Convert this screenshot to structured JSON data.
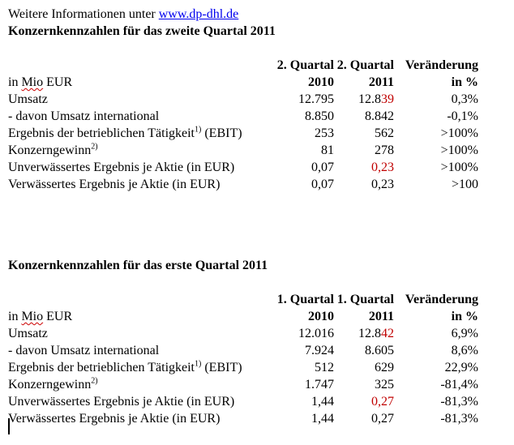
{
  "intro": {
    "prefix": "Weitere Informationen unter ",
    "link": "www.dp-dhl.de"
  },
  "colors": {
    "link": "#0000ee",
    "changed_value": "#c00000",
    "spellcheck_squiggle": "#cc0000"
  },
  "tables": [
    {
      "title": "Konzernkennzahlen für das zweite Quartal 2011",
      "quarter_headers": [
        "2. Quartal",
        "2. Quartal",
        "Veränderung"
      ],
      "unit_row": {
        "pre": "in ",
        "wavy": "Mio",
        "post": " EUR",
        "cols": [
          "2010",
          "2011",
          "in %"
        ]
      },
      "rows": [
        {
          "label": "Umsatz",
          "y2010": "12.795",
          "y2011_pre": "12.8",
          "y2011_red": "39",
          "change": "0,3%"
        },
        {
          "label": "- davon Umsatz international",
          "y2010": "8.850",
          "y2011_pre": "8.842",
          "y2011_red": "",
          "change": "-0,1%"
        },
        {
          "label": "Ergebnis der betrieblichen Tätigkeit",
          "sup": "1)",
          "label_after": " (EBIT)",
          "y2010": "253",
          "y2011_pre": "562",
          "y2011_red": "",
          "change": ">100%"
        },
        {
          "label": "Konzerngewinn",
          "sup": "2)",
          "label_after": "",
          "y2010": "81",
          "y2011_pre": "278",
          "y2011_red": "",
          "change": ">100%"
        },
        {
          "label": "Unverwässertes Ergebnis je Aktie (in EUR)",
          "y2010": "0,07",
          "y2011_pre": "",
          "y2011_red": "0,23",
          "change": ">100%"
        },
        {
          "label": "Verwässertes Ergebnis je Aktie (in EUR)",
          "y2010": "0,07",
          "y2011_pre": "0,23",
          "y2011_red": "",
          "change": ">100"
        }
      ]
    },
    {
      "title": "Konzernkennzahlen für das erste Quartal 2011",
      "quarter_headers": [
        "1. Quartal",
        "1. Quartal",
        "Veränderung"
      ],
      "unit_row": {
        "pre": "in ",
        "wavy": "Mio",
        "post": " EUR",
        "cols": [
          "2010",
          "2011",
          "in %"
        ]
      },
      "rows": [
        {
          "label": "Umsatz",
          "y2010": "12.016",
          "y2011_pre": "12.8",
          "y2011_red": "42",
          "change": "6,9%"
        },
        {
          "label": "- davon Umsatz international",
          "y2010": "7.924",
          "y2011_pre": "8.605",
          "y2011_red": "",
          "change": "8,6%"
        },
        {
          "label": "Ergebnis der betrieblichen Tätigkeit",
          "sup": "1)",
          "label_after": " (EBIT)",
          "y2010": "512",
          "y2011_pre": "629",
          "y2011_red": "",
          "change": "22,9%"
        },
        {
          "label": "Konzerngewinn",
          "sup": "2)",
          "label_after": "",
          "y2010": "1.747",
          "y2011_pre": "325",
          "y2011_red": "",
          "change": "-81,4%"
        },
        {
          "label": "Unverwässertes Ergebnis je Aktie (in EUR)",
          "y2010": "1,44",
          "y2011_pre": "",
          "y2011_red": "0,27",
          "change": "-81,3%"
        },
        {
          "label": "Verwässertes Ergebnis je Aktie (in EUR)",
          "y2010": "1,44",
          "y2011_pre": "0,27",
          "y2011_red": "",
          "change": "-81,3%"
        }
      ]
    }
  ]
}
